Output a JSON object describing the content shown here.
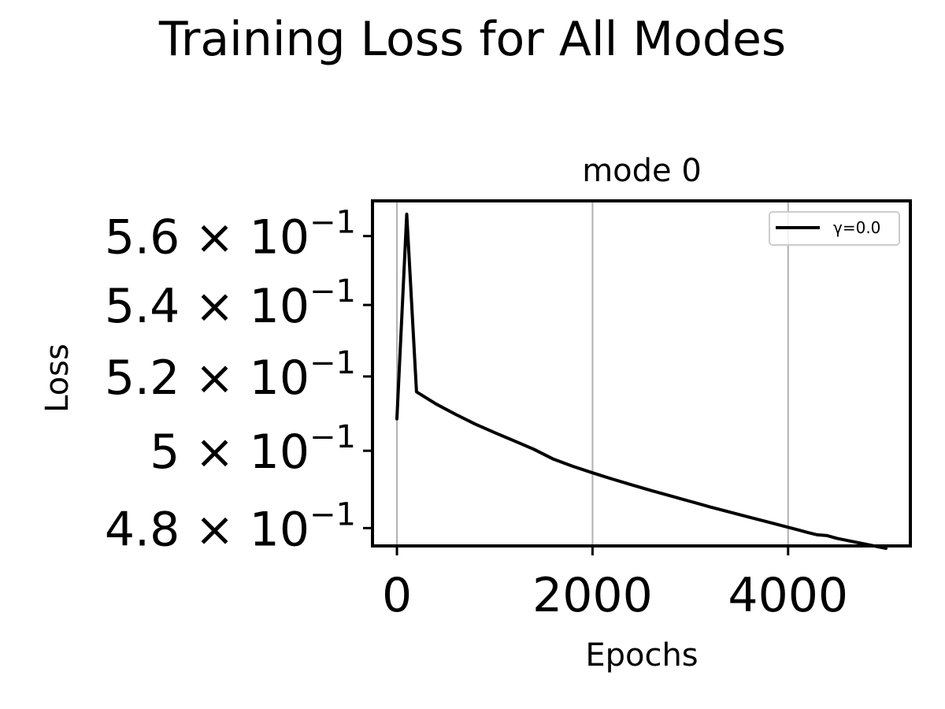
{
  "chart_data": {
    "type": "line",
    "suptitle": "Training Loss for All Modes",
    "title": "mode 0",
    "xlabel": "Epochs",
    "ylabel": "Loss",
    "yscale": "log",
    "xlim": [
      -250,
      5250
    ],
    "ylim": [
      0.4755,
      0.5705
    ],
    "grid": "x-major",
    "legend_position": "upper right",
    "xticks": [
      {
        "value": 0,
        "label": "0"
      },
      {
        "value": 2000,
        "label": "2000"
      },
      {
        "value": 4000,
        "label": "4000"
      }
    ],
    "yticks": [
      {
        "value": 0.56,
        "mant": "5.6",
        "base": "10",
        "exp": "−1"
      },
      {
        "value": 0.54,
        "mant": "5.4",
        "base": "10",
        "exp": "−1"
      },
      {
        "value": 0.52,
        "mant": "5.2",
        "base": "10",
        "exp": "−1"
      },
      {
        "value": 0.5,
        "mant": "5",
        "base": "10",
        "exp": "−1"
      },
      {
        "value": 0.48,
        "mant": "4.8",
        "base": "10",
        "exp": "−1"
      }
    ],
    "series": [
      {
        "name": "γ=0.0",
        "color": "#000000",
        "x": [
          0,
          100,
          200,
          400,
          600,
          800,
          1000,
          1200,
          1400,
          1600,
          1800,
          2000,
          2200,
          2400,
          2600,
          2800,
          3000,
          3200,
          3400,
          3600,
          3800,
          4000,
          4200,
          4300,
          4400,
          4500,
          4600,
          4800,
          5000
        ],
        "y": [
          0.5085,
          0.5665,
          0.5158,
          0.5125,
          0.5097,
          0.5071,
          0.5048,
          0.5026,
          0.5004,
          0.4978,
          0.4959,
          0.4942,
          0.4926,
          0.4911,
          0.4896,
          0.4882,
          0.4868,
          0.4854,
          0.4841,
          0.4828,
          0.4815,
          0.4802,
          0.4789,
          0.4783,
          0.4781,
          0.4774,
          0.4769,
          0.4759,
          0.4749
        ]
      }
    ]
  }
}
